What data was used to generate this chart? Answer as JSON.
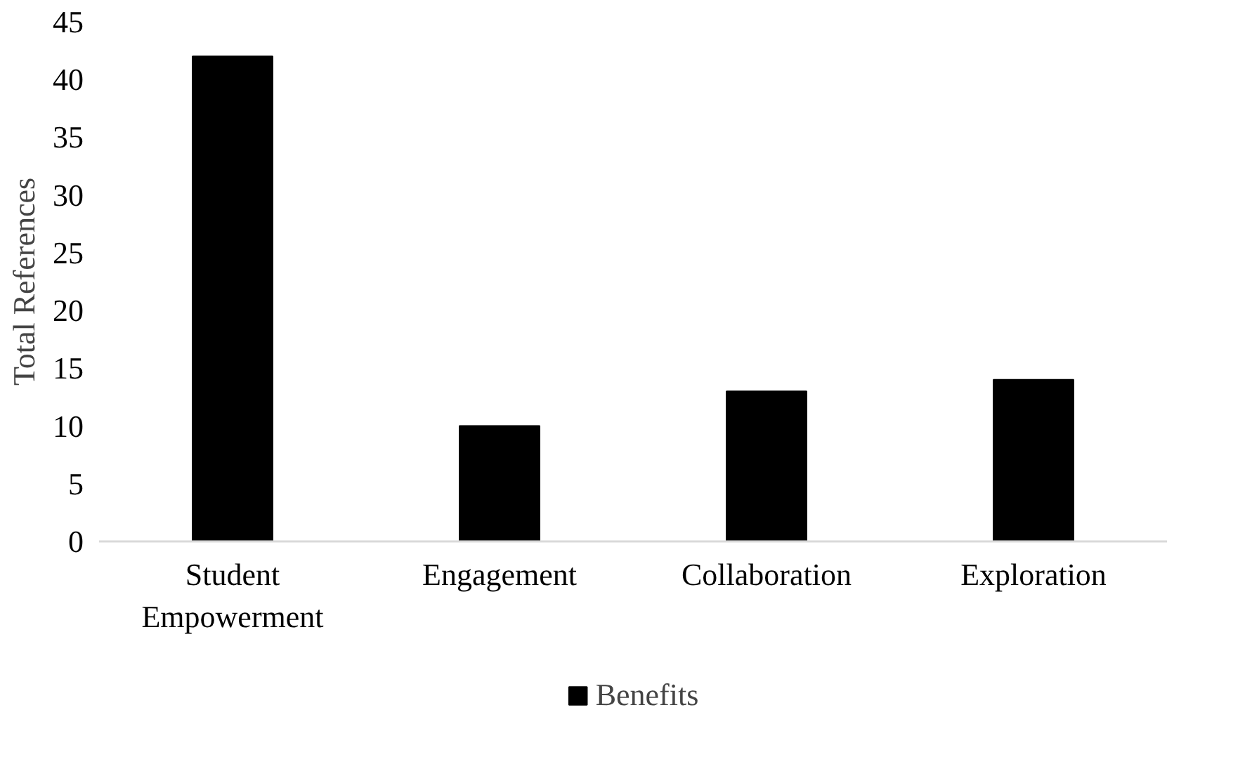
{
  "chart_data": {
    "type": "bar",
    "ylabel": "Total References",
    "categories": [
      "Student Empowerment",
      "Engagement",
      "Collaboration",
      "Exploration"
    ],
    "series": [
      {
        "name": "Benefits",
        "color": "#000000",
        "values": [
          42,
          10,
          13,
          14
        ]
      }
    ],
    "ylim": [
      0,
      45
    ],
    "yticks": [
      0,
      5,
      10,
      15,
      20,
      25,
      30,
      35,
      40,
      45
    ],
    "grid": false,
    "legend": "bottom"
  }
}
